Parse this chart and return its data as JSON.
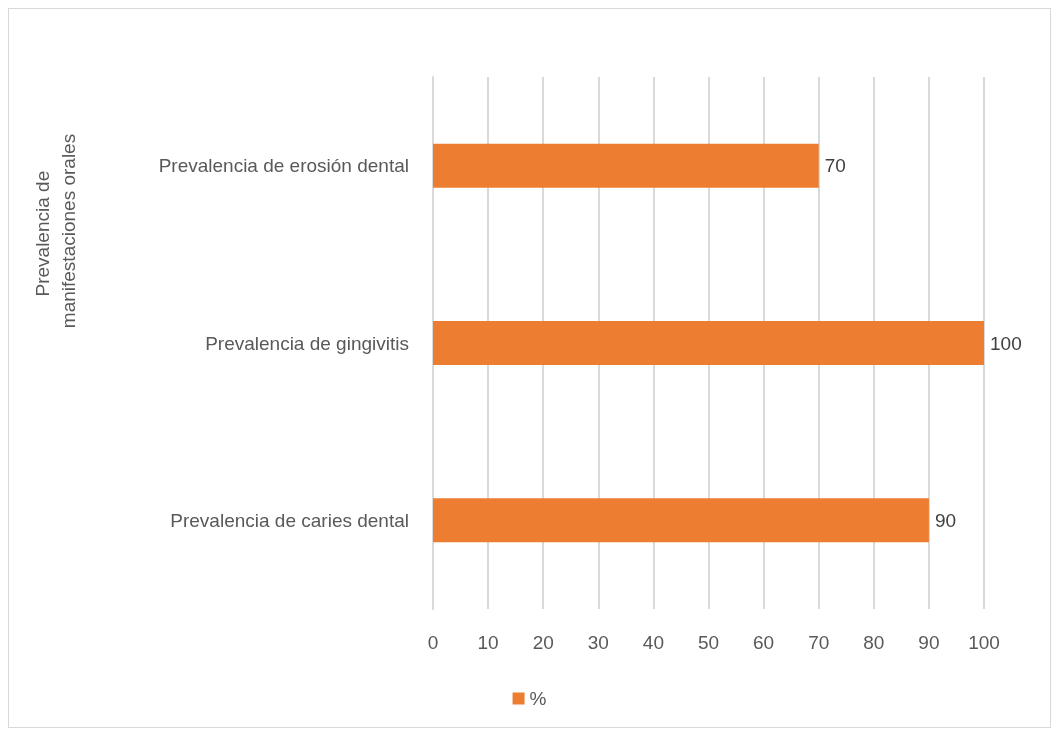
{
  "chart_data": {
    "type": "bar",
    "orientation": "horizontal",
    "ylabel": "Prevalencia de manifestaciones orales",
    "categories": [
      "Prevalencia de erosión dental",
      "Prevalencia de gingivitis",
      "Prevalencia de caries dental"
    ],
    "series": [
      {
        "name": "%",
        "color": "#ed7d31",
        "values": [
          70,
          100,
          90
        ]
      }
    ],
    "xlim": [
      0,
      100
    ],
    "xticks": [
      0,
      10,
      20,
      30,
      40,
      50,
      60,
      70,
      80,
      90,
      100
    ],
    "grid": "x",
    "legend": "bottom",
    "data_labels": true
  }
}
